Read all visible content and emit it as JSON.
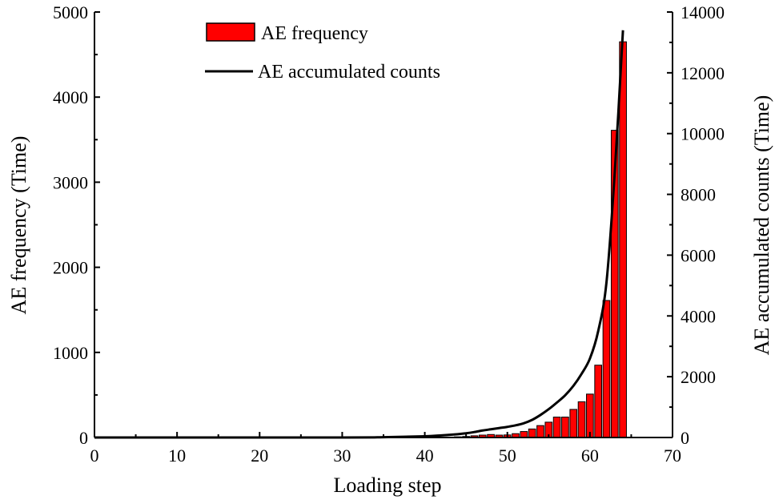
{
  "colors": {
    "bar_fill": "#ff0000",
    "bar_stroke": "#000000",
    "line": "#000000",
    "axis": "#000000",
    "background": "#ffffff"
  },
  "chart_data": {
    "type": "bar",
    "combined_with": "line",
    "title": "",
    "xlabel": "Loading step",
    "ylabel_left": "AE frequency (Time)",
    "ylabel_right": "AE accumulated counts (Time)",
    "xlim": [
      0,
      70
    ],
    "ylim_left": [
      0,
      5000
    ],
    "ylim_right": [
      0,
      14000
    ],
    "x_ticks": [
      "0",
      "10",
      "20",
      "30",
      "40",
      "50",
      "60",
      "70"
    ],
    "y_left_ticks": [
      "0",
      "1000",
      "2000",
      "3000",
      "4000",
      "5000"
    ],
    "y_right_ticks": [
      "0",
      "2000",
      "4000",
      "6000",
      "8000",
      "10000",
      "12000",
      "14000"
    ],
    "grid": false,
    "legend_position": "top-left",
    "series": [
      {
        "name": "AE frequency",
        "type": "bar",
        "axis": "left",
        "x": [
          43,
          44,
          45,
          46,
          47,
          48,
          49,
          50,
          51,
          52,
          53,
          54,
          55,
          56,
          57,
          58,
          59,
          60,
          61,
          62,
          63,
          64
        ],
        "values": [
          5,
          8,
          12,
          20,
          28,
          35,
          28,
          30,
          45,
          70,
          100,
          140,
          180,
          240,
          240,
          330,
          420,
          510,
          850,
          1610,
          3610,
          4650
        ]
      },
      {
        "name": "AE accumulated counts",
        "type": "line",
        "axis": "right",
        "x": [
          0,
          30,
          35,
          40,
          42,
          44,
          45,
          46,
          47,
          48,
          49,
          50,
          51,
          52,
          53,
          54,
          55,
          56,
          57,
          58,
          59,
          60,
          61,
          62,
          63,
          64
        ],
        "values": [
          0,
          0,
          10,
          40,
          70,
          110,
          140,
          180,
          230,
          270,
          310,
          350,
          400,
          470,
          580,
          740,
          930,
          1150,
          1390,
          1700,
          2100,
          2600,
          3500,
          5100,
          8700,
          13400
        ]
      }
    ]
  }
}
